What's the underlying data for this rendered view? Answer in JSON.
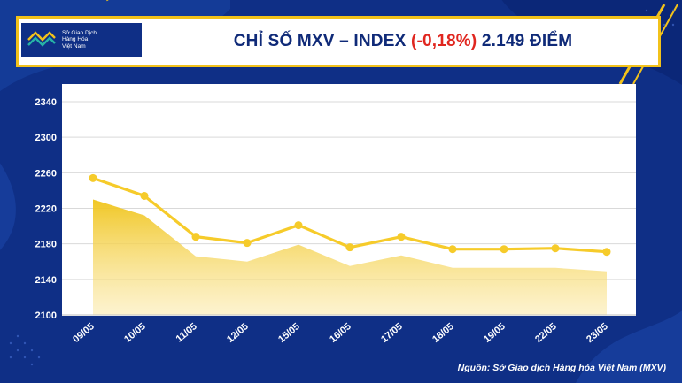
{
  "header": {
    "logo_lines": [
      "Sở Giao Dịch",
      "Hàng Hóa",
      "Việt Nam"
    ],
    "title_part1": "CHỈ SỐ MXV – INDEX",
    "title_change": "(-0,18%)",
    "title_part2": "2.149 ĐIỂM"
  },
  "source": "Nguồn: Sở Giao dịch Hàng hóa Việt Nam (MXV)",
  "colors": {
    "background": "#0f2f86",
    "accent_yellow": "#f2c21b",
    "negative_red": "#e0261f",
    "title_navy": "#0f2a78"
  },
  "chart_data": {
    "type": "line",
    "categories": [
      "09/05",
      "10/05",
      "11/05",
      "12/05",
      "15/05",
      "16/05",
      "17/05",
      "18/05",
      "19/05",
      "22/05",
      "23/05"
    ],
    "series": [
      {
        "values": [
          2254,
          2234,
          2188,
          2181,
          2201,
          2176,
          2188,
          2174,
          2174,
          2175,
          2171
        ],
        "style": "line",
        "color": "#f6cb2a"
      },
      {
        "values": [
          2230,
          2212,
          2166,
          2160,
          2179,
          2155,
          2167,
          2153,
          2153,
          2153,
          2149
        ],
        "style": "area",
        "color": "#f0c419"
      }
    ],
    "yticks": [
      2100,
      2140,
      2180,
      2220,
      2260,
      2300,
      2340
    ],
    "ylim": [
      2100,
      2340
    ],
    "grid": true,
    "legend": "none"
  }
}
